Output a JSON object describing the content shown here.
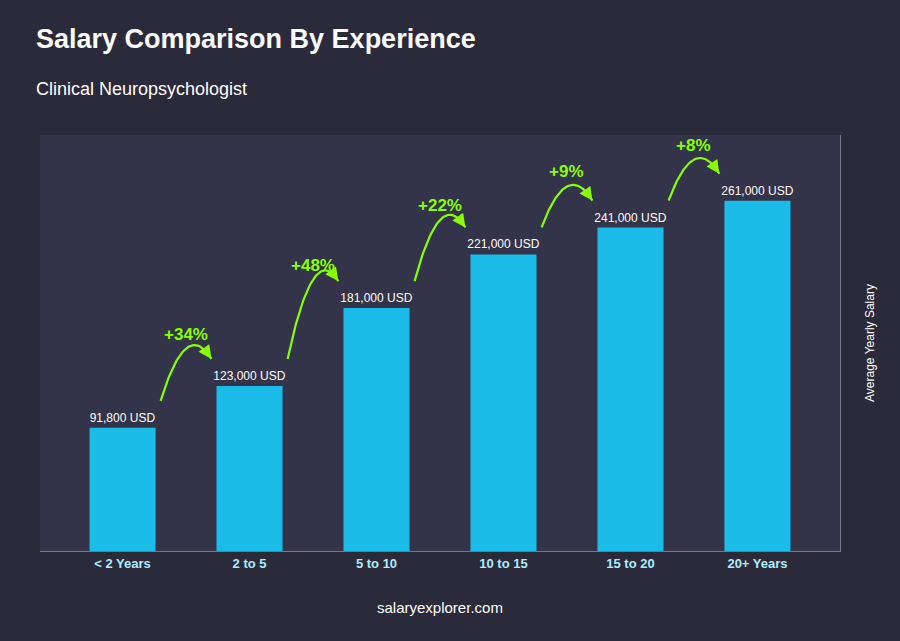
{
  "chart_data": {
    "type": "bar",
    "title": "Salary Comparison By Experience",
    "subtitle": "Clinical Neuropsychologist",
    "categories": [
      "< 2 Years",
      "2 to 5",
      "5 to 10",
      "10 to 15",
      "15 to 20",
      "20+ Years"
    ],
    "values": [
      91800,
      123000,
      181000,
      221000,
      241000,
      261000
    ],
    "value_labels": [
      "91,800 USD",
      "123,000 USD",
      "181,000 USD",
      "221,000 USD",
      "241,000 USD",
      "261,000 USD"
    ],
    "data_labels": true,
    "color": "#1BBDE8",
    "ylabel": "Average Yearly Salary",
    "ylim": [
      0,
      310000
    ],
    "tick_labels": "x",
    "grid": false,
    "annotations": [
      {
        "text": "+34%",
        "from": 0,
        "to": 1
      },
      {
        "text": "+48%",
        "from": 1,
        "to": 2
      },
      {
        "text": "+22%",
        "from": 2,
        "to": 3
      },
      {
        "text": "+9%",
        "from": 3,
        "to": 4
      },
      {
        "text": "+8%",
        "from": 4,
        "to": 5
      },
      {
        "text": "salaryexplorer.com"
      }
    ]
  }
}
